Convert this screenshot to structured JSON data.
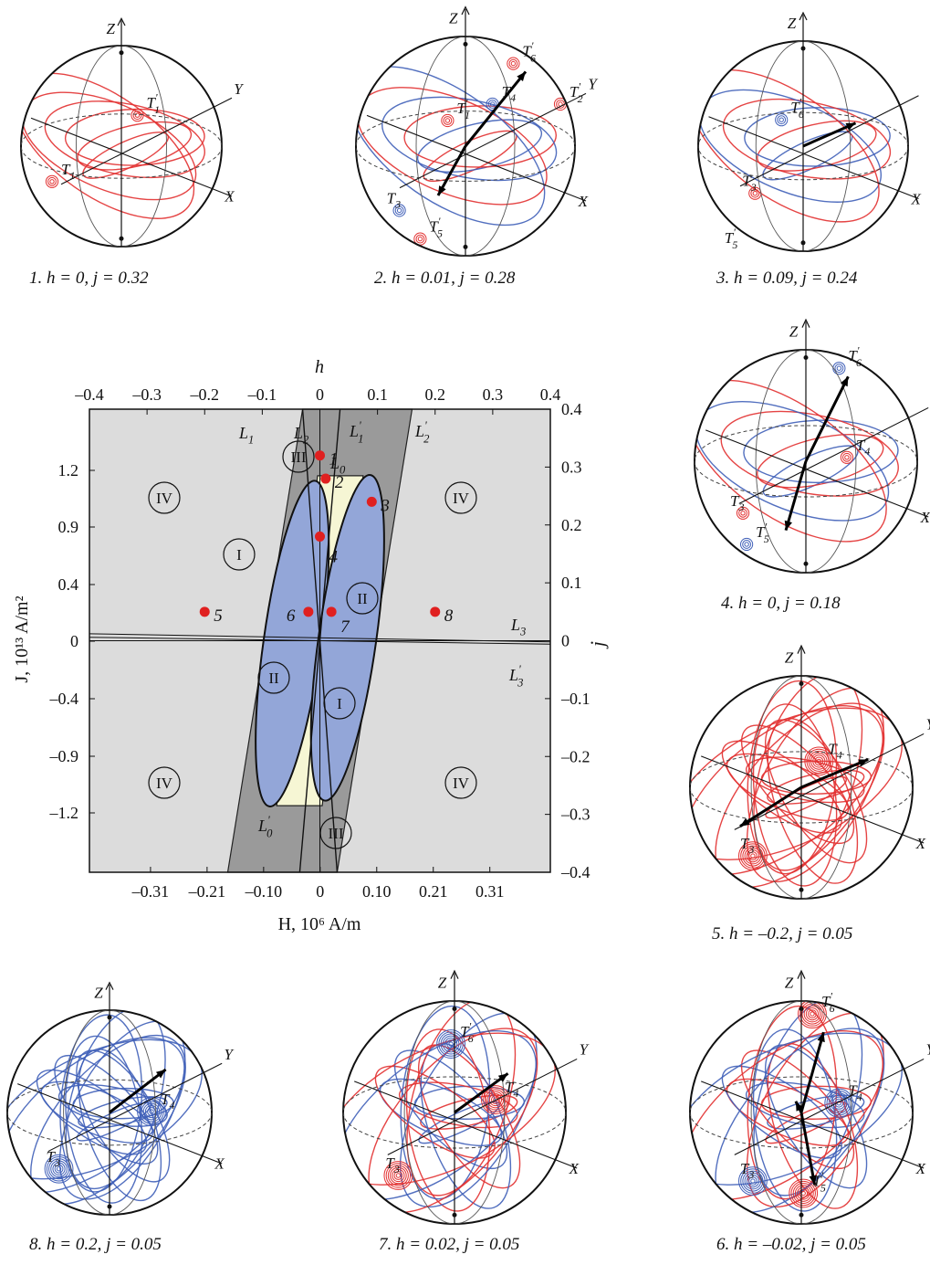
{
  "figure": {
    "panels": [
      {
        "num": "1",
        "caption": "1. h = 0, j = 0.32",
        "labels": [
          "Z",
          "Y",
          "X",
          "T1",
          "T1'"
        ],
        "colors": [
          "#e23030"
        ]
      },
      {
        "num": "2",
        "caption": "2. h = 0.01, j = 0.28",
        "labels": [
          "Z",
          "Y",
          "X",
          "T6'",
          "T4",
          "T1'",
          "T2'",
          "T3",
          "T5'"
        ],
        "colors": [
          "#e23030",
          "#3f5fb8"
        ]
      },
      {
        "num": "3",
        "caption": "3. h = 0.09, j = 0.24",
        "labels": [
          "Z",
          "X",
          "T6'",
          "T3",
          "T5'"
        ],
        "colors": [
          "#3f5fb8",
          "#e23030"
        ]
      },
      {
        "num": "4",
        "caption": "4. h = 0, j = 0.18",
        "labels": [
          "Z",
          "Y",
          "X",
          "T6'",
          "T4",
          "T3",
          "T5'"
        ],
        "colors": [
          "#3f5fb8",
          "#e23030"
        ]
      },
      {
        "num": "5",
        "caption": "5. h = –0.2, j = 0.05",
        "labels": [
          "Z",
          "Y",
          "X",
          "T4",
          "T3"
        ],
        "colors": [
          "#e23030"
        ]
      },
      {
        "num": "6",
        "caption": "6. h = –0.02, j = 0.05",
        "labels": [
          "Z",
          "Y",
          "X",
          "T6'",
          "T4",
          "T3",
          "T5'"
        ],
        "colors": [
          "#e23030",
          "#3f5fb8"
        ]
      },
      {
        "num": "7",
        "caption": "7. h = 0.02, j = 0.05",
        "labels": [
          "Z",
          "Y",
          "X",
          "T6'",
          "T4",
          "T3"
        ],
        "colors": [
          "#3f5fb8",
          "#e23030"
        ]
      },
      {
        "num": "8",
        "caption": "8. h = 0.2, j = 0.05",
        "labels": [
          "Z",
          "Y",
          "X",
          "T4",
          "T3"
        ],
        "colors": [
          "#3f5fb8"
        ]
      }
    ],
    "diagram": {
      "h_label": "h",
      "j_label": "j",
      "H_label": "H, 10⁶ A/m",
      "J_label": "J, 10¹³ A/m²",
      "h_ticks": [
        "–0.4",
        "–0.3",
        "–0.2",
        "–0.1",
        "0",
        "0.1",
        "0.2",
        "0.3",
        "0.4"
      ],
      "j_ticks": [
        "0.4",
        "0.3",
        "0.2",
        "0.1",
        "0",
        "–0.1",
        "–0.2",
        "–0.3",
        "–0.4"
      ],
      "H_ticks": [
        "–0.31",
        "–0.21",
        "–0.10",
        "0",
        "0.10",
        "0.21",
        "0.31"
      ],
      "J_ticks": [
        "1.2",
        "0.9",
        "0.4",
        "0",
        "–0.4",
        "–0.9",
        "–1.2"
      ],
      "line_labels": [
        "L1",
        "L2",
        "L1'",
        "L2'",
        "L0",
        "L0'",
        "L3",
        "L3'"
      ],
      "region_labels": [
        "I",
        "II",
        "III",
        "IV"
      ],
      "points": [
        {
          "id": "1",
          "h": 0.0,
          "j": 0.32
        },
        {
          "id": "2",
          "h": 0.01,
          "j": 0.28
        },
        {
          "id": "3",
          "h": 0.09,
          "j": 0.24
        },
        {
          "id": "4",
          "h": 0.0,
          "j": 0.18
        },
        {
          "id": "5",
          "h": -0.2,
          "j": 0.05
        },
        {
          "id": "6",
          "h": -0.02,
          "j": 0.05
        },
        {
          "id": "7",
          "h": 0.02,
          "j": 0.05
        },
        {
          "id": "8",
          "h": 0.2,
          "j": 0.05
        }
      ],
      "colors": {
        "region_iv": "#dcdcdc",
        "region_iii": "#9a9a9a",
        "region_i": "#f6f6d4",
        "region_ii": "#93a6d8",
        "point": "#e02020"
      }
    }
  }
}
